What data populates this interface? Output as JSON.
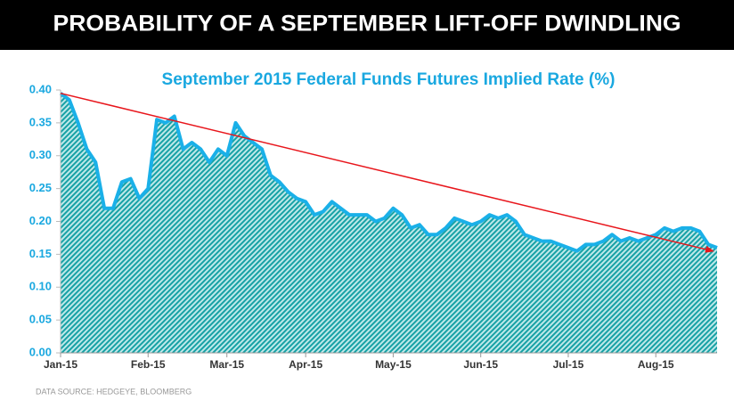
{
  "header": {
    "title": "PROBABILITY OF A SEPTEMBER LIFT-OFF DWINDLING"
  },
  "chart_data": {
    "type": "area",
    "title": "September 2015 Federal Funds Futures Implied Rate (%)",
    "categories": [
      "Jan-15",
      null,
      null,
      null,
      null,
      null,
      null,
      null,
      null,
      null,
      "Feb-15",
      null,
      null,
      null,
      null,
      null,
      null,
      null,
      null,
      "Mar-15",
      null,
      null,
      null,
      null,
      null,
      null,
      null,
      null,
      "Apr-15",
      null,
      null,
      null,
      null,
      null,
      null,
      null,
      null,
      null,
      "May-15",
      null,
      null,
      null,
      null,
      null,
      null,
      null,
      null,
      null,
      "Jun-15",
      null,
      null,
      null,
      null,
      null,
      null,
      null,
      null,
      null,
      "Jul-15",
      null,
      null,
      null,
      null,
      null,
      null,
      null,
      null,
      null,
      "Aug-15",
      null,
      null,
      null,
      null,
      null,
      null,
      null
    ],
    "values": [
      0.395,
      0.385,
      0.35,
      0.31,
      0.29,
      0.22,
      0.22,
      0.26,
      0.265,
      0.235,
      0.25,
      0.355,
      0.35,
      0.36,
      0.31,
      0.32,
      0.31,
      0.29,
      0.31,
      0.3,
      0.35,
      0.33,
      0.32,
      0.31,
      0.27,
      0.26,
      0.245,
      0.235,
      0.23,
      0.21,
      0.215,
      0.23,
      0.22,
      0.21,
      0.21,
      0.21,
      0.2,
      0.205,
      0.22,
      0.21,
      0.19,
      0.195,
      0.18,
      0.18,
      0.19,
      0.205,
      0.2,
      0.195,
      0.2,
      0.21,
      0.205,
      0.21,
      0.2,
      0.18,
      0.175,
      0.17,
      0.17,
      0.165,
      0.16,
      0.155,
      0.165,
      0.165,
      0.17,
      0.18,
      0.17,
      0.175,
      0.17,
      0.175,
      0.18,
      0.19,
      0.185,
      0.19,
      0.19,
      0.185,
      0.165,
      0.16
    ],
    "color": "#1ab0e8",
    "fill": "#17a1a5",
    "trendline": {
      "color": "#e8161c",
      "start": 0.395,
      "end": 0.155
    },
    "ylim": [
      0,
      0.4
    ],
    "yticks": [
      {
        "value": 0,
        "label": "0.00"
      },
      {
        "value": 0.05,
        "label": "0.05"
      },
      {
        "value": 0.1,
        "label": "0.10"
      },
      {
        "value": 0.15,
        "label": "0.15"
      },
      {
        "value": 0.2,
        "label": "0.20"
      },
      {
        "value": 0.25,
        "label": "0.25"
      },
      {
        "value": 0.3,
        "label": "0.30"
      },
      {
        "value": 0.35,
        "label": "0.35"
      },
      {
        "value": 0.4,
        "label": "0.40"
      }
    ],
    "source": "DATA SOURCE: HEDGEYE, BLOOMBERG"
  }
}
